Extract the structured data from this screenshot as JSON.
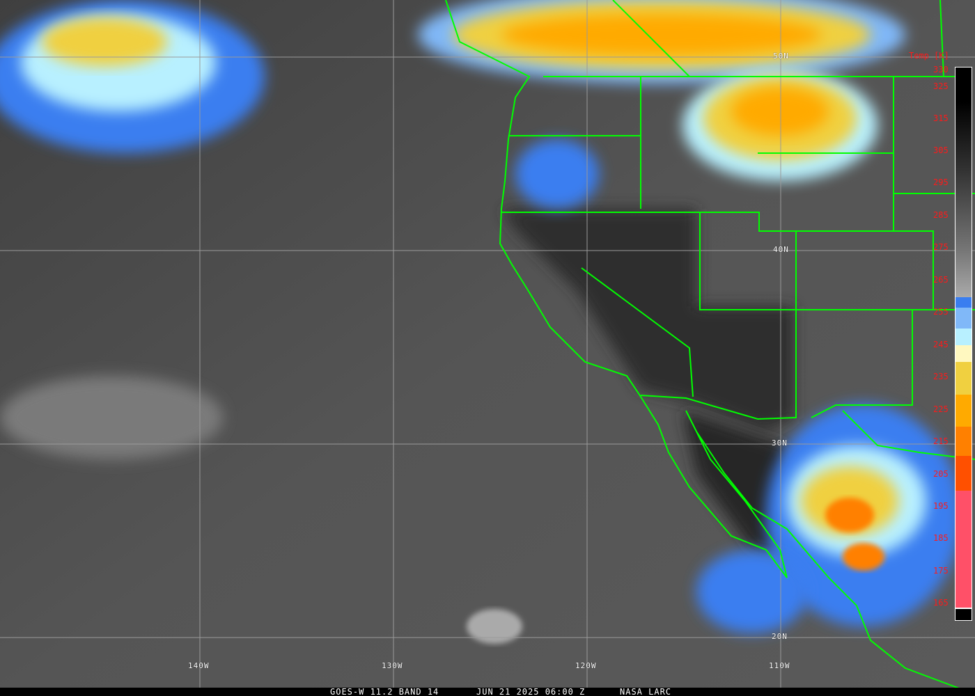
{
  "caption": {
    "satellite": "GOES-W 11.2 BAND 14",
    "datetime": "JUN 21 2025 06:00 Z",
    "source": "NASA LARC"
  },
  "grid": {
    "longitudes": [
      "140W",
      "130W",
      "120W",
      "110W"
    ],
    "latitudes": [
      "50N",
      "40N",
      "30N",
      "20N"
    ]
  },
  "colorbar": {
    "title": "Temp [K]",
    "ticks": [
      "330",
      "325",
      "315",
      "305",
      "295",
      "285",
      "275",
      "265",
      "255",
      "245",
      "235",
      "225",
      "215",
      "205",
      "195",
      "185",
      "175",
      "165"
    ],
    "colors": {
      "blue": "#3a7ef0",
      "light_blue": "#80b8f8",
      "cyan": "#b8f0ff",
      "pale_yellow": "#fff8c0",
      "yellow": "#f0d040",
      "orange": "#ffaa00",
      "dark_orange": "#ff8000",
      "red_orange": "#ff5000",
      "pink": "#ff5068"
    }
  },
  "colors": {
    "boundaries": "#00ff00",
    "gridlines": "#9a9a9a"
  }
}
